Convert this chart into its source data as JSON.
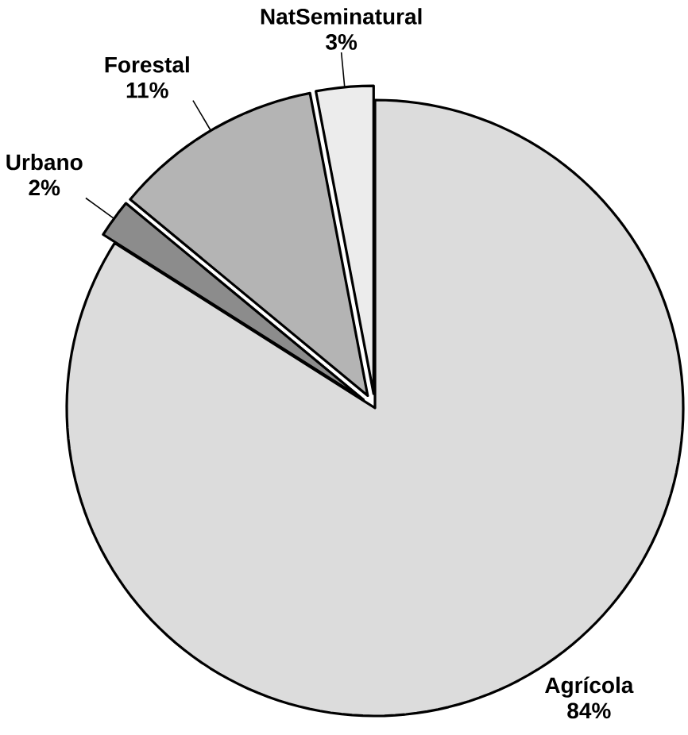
{
  "chart_data": {
    "type": "pie",
    "categories": [
      "Agrícola",
      "Urbano",
      "Forestal",
      "NatSeminatural"
    ],
    "values": [
      84,
      2,
      11,
      3
    ],
    "value_labels": [
      "84%",
      "2%",
      "11%",
      "3%"
    ],
    "colors": [
      "#dcdcdc",
      "#8c8c8c",
      "#b4b4b4",
      "#ececec"
    ]
  }
}
